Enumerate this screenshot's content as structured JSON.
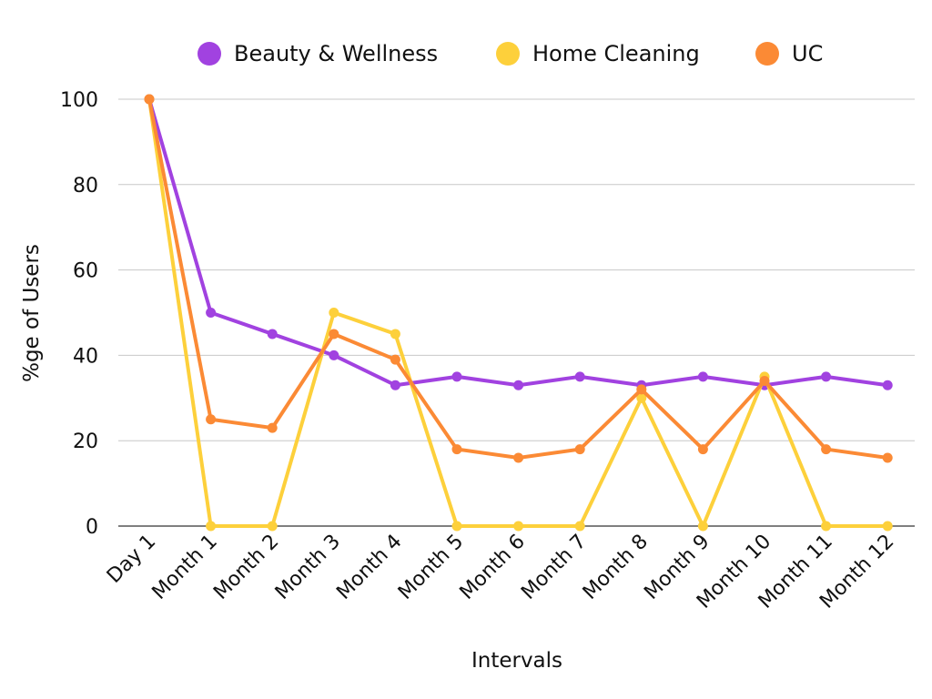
{
  "chart_data": {
    "type": "line",
    "xlabel": "Intervals",
    "ylabel": "%ge of Users",
    "ylim": [
      0,
      100
    ],
    "yticks": [
      0,
      20,
      40,
      60,
      80,
      100
    ],
    "grid": true,
    "legend_position": "top",
    "categories": [
      "Day 1",
      "Month 1",
      "Month 2",
      "Month 3",
      "Month 4",
      "Month 5",
      "Month 6",
      "Month 7",
      "Month 8",
      "Month 9",
      "Month 10",
      "Month 11",
      "Month 12"
    ],
    "series": [
      {
        "name": "Beauty & Wellness",
        "color": "#a142e0",
        "values": [
          100,
          50,
          45,
          40,
          33,
          35,
          33,
          35,
          33,
          35,
          33,
          35,
          33
        ]
      },
      {
        "name": "Home Cleaning",
        "color": "#fdd03b",
        "values": [
          100,
          0,
          0,
          50,
          45,
          0,
          0,
          0,
          30,
          0,
          35,
          0,
          0
        ]
      },
      {
        "name": "UC",
        "color": "#fb8a35",
        "values": [
          100,
          25,
          23,
          45,
          39,
          18,
          16,
          18,
          32,
          18,
          34,
          18,
          16
        ]
      }
    ]
  },
  "colors": {
    "grid": "#c8c8c8",
    "axis": "#333333"
  }
}
